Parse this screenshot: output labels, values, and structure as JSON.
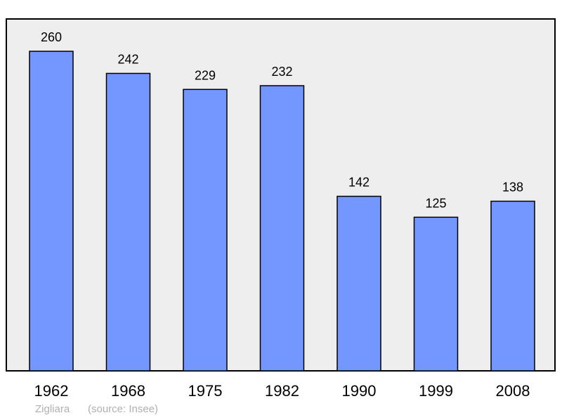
{
  "chart_data": {
    "type": "bar",
    "categories": [
      "1962",
      "1968",
      "1975",
      "1982",
      "1990",
      "1999",
      "2008"
    ],
    "values": [
      260,
      242,
      229,
      232,
      142,
      125,
      138
    ],
    "title": "",
    "xlabel": "",
    "ylabel": "",
    "ylim": [
      0,
      260
    ],
    "grid": false,
    "legend": "none",
    "bar_color": "#7396ff",
    "plot_background": "#eeeeee"
  },
  "footer": {
    "author": "Zigliara",
    "source": "(source: Insee)"
  }
}
